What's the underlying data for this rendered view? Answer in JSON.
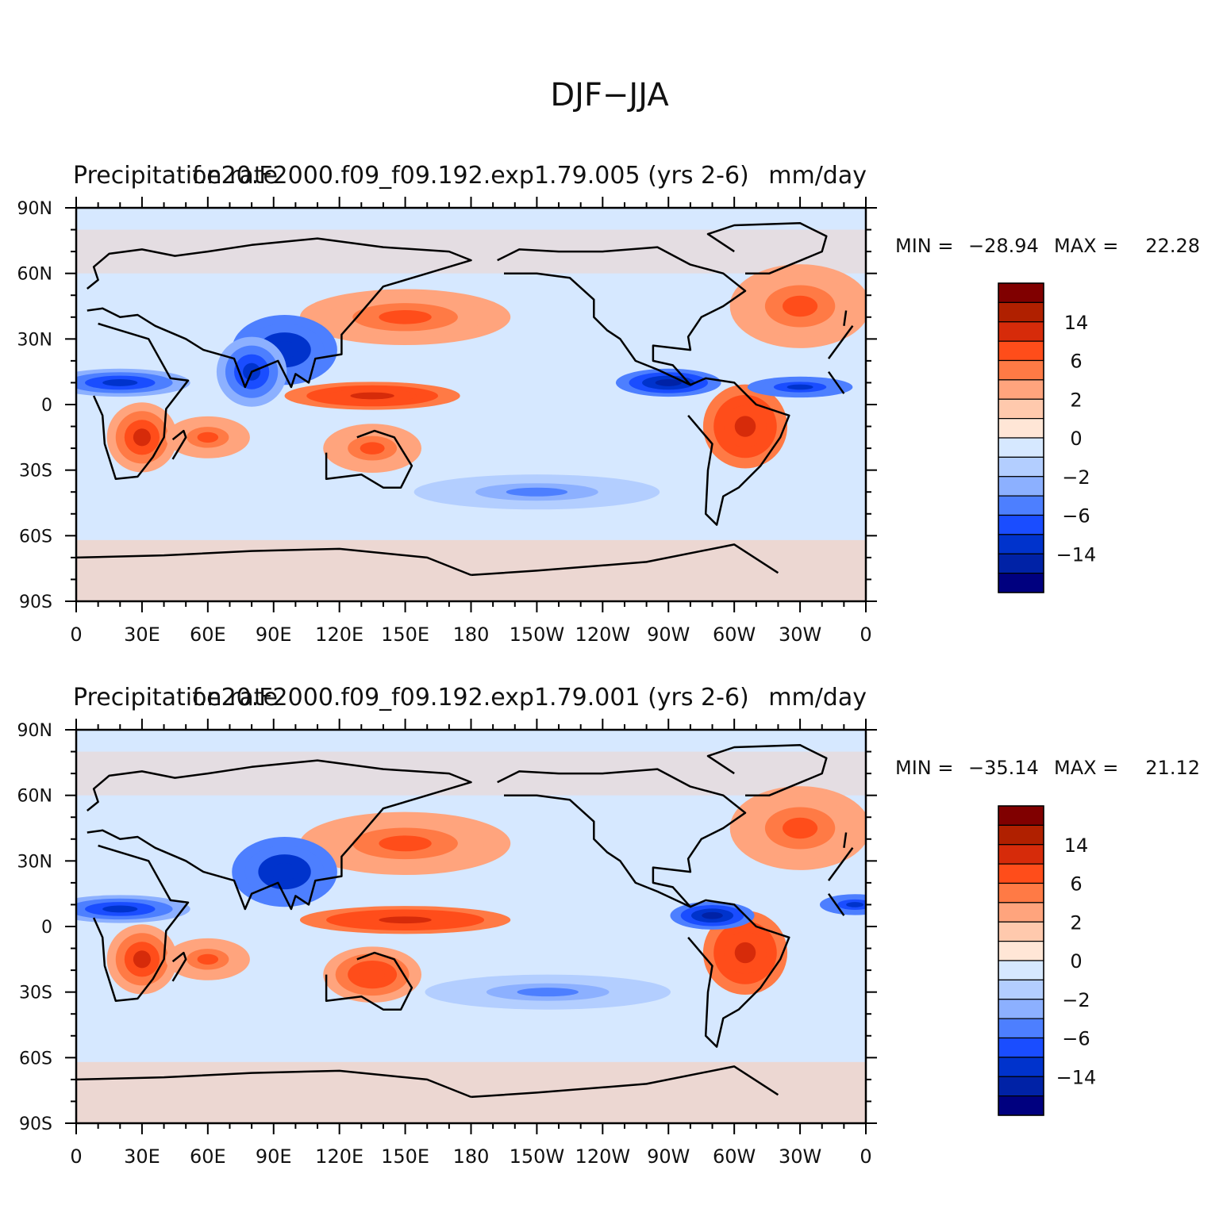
{
  "title": "DJF-JJA",
  "colors": {
    "levels": [
      "#00007f",
      "#0022a6",
      "#0033cc",
      "#1a4dff",
      "#4d7fff",
      "#8cb0ff",
      "#b3ceff",
      "#d6e8ff",
      "#ffe6d6",
      "#ffc9ad",
      "#ffa47d",
      "#ff7a45",
      "#ff4d1a",
      "#d62b0a",
      "#b02000",
      "#800000"
    ],
    "coast": "#000000"
  },
  "longitude_ticks": [
    "0",
    "30E",
    "60E",
    "90E",
    "120E",
    "150E",
    "180",
    "150W",
    "120W",
    "90W",
    "60W",
    "30W",
    "0"
  ],
  "latitude_ticks": [
    "90N",
    "60N",
    "30N",
    "0",
    "30S",
    "60S",
    "90S"
  ],
  "colorbar_labels": [
    "14",
    "6",
    "2",
    "0",
    "-2",
    "-6",
    "-14"
  ],
  "panels": [
    {
      "left_title": "Precipitation rate",
      "center_title": "f.e20.F2000.f09_f09.192.exp1.79.005 (yrs 2-6)",
      "right_title": "mm/day",
      "min_label": "MIN = ",
      "min_value": "-28.94",
      "max_label": "MAX = ",
      "max_value": "22.28"
    },
    {
      "left_title": "Precipitation rate",
      "center_title": "f.e20.F2000.f09_f09.192.exp1.79.001 (yrs 2-6)",
      "right_title": "mm/day",
      "min_label": "MIN = ",
      "min_value": "-35.14",
      "max_label": "MAX = ",
      "max_value": "21.12"
    }
  ],
  "chart_data": [
    {
      "type": "heatmap",
      "title": "DJF-JJA",
      "subtitle": "f.e20.F2000.f09_f09.192.exp1.79.005 (yrs 2-6)",
      "variable": "Precipitation rate",
      "units": "mm/day",
      "xlim": [
        0,
        360
      ],
      "ylim": [
        -90,
        90
      ],
      "min": -28.94,
      "max": 22.28,
      "contour_levels": [
        -14,
        -6,
        -2,
        0,
        2,
        6,
        14
      ],
      "features": [
        {
          "lon": 150,
          "lat": 40,
          "value": 6,
          "rx": 30,
          "ry": 8
        },
        {
          "lon": 135,
          "lat": 4,
          "value": 10,
          "rx": 25,
          "ry": 4
        },
        {
          "lon": 30,
          "lat": -15,
          "value": 8,
          "rx": 10,
          "ry": 10
        },
        {
          "lon": 60,
          "lat": -15,
          "value": 6,
          "rx": 12,
          "ry": 6
        },
        {
          "lon": 135,
          "lat": -20,
          "value": 6,
          "rx": 14,
          "ry": 7
        },
        {
          "lon": 305,
          "lat": -10,
          "value": 10,
          "rx": 12,
          "ry": 12
        },
        {
          "lon": 330,
          "lat": 45,
          "value": 6,
          "rx": 20,
          "ry": 12
        },
        {
          "lon": 20,
          "lat": 10,
          "value": -10,
          "rx": 20,
          "ry": 4
        },
        {
          "lon": 95,
          "lat": 25,
          "value": -14,
          "rx": 15,
          "ry": 10
        },
        {
          "lon": 80,
          "lat": 15,
          "value": -10,
          "rx": 10,
          "ry": 10
        },
        {
          "lon": 270,
          "lat": 10,
          "value": -16,
          "rx": 15,
          "ry": 4
        },
        {
          "lon": 330,
          "lat": 8,
          "value": -12,
          "rx": 15,
          "ry": 3
        },
        {
          "lon": 210,
          "lat": -40,
          "value": -5,
          "rx": 35,
          "ry": 5
        }
      ]
    },
    {
      "type": "heatmap",
      "title": "DJF-JJA",
      "subtitle": "f.e20.F2000.f09_f09.192.exp1.79.001 (yrs 2-6)",
      "variable": "Precipitation rate",
      "units": "mm/day",
      "xlim": [
        0,
        360
      ],
      "ylim": [
        -90,
        90
      ],
      "min": -35.14,
      "max": 21.12,
      "contour_levels": [
        -14,
        -6,
        -2,
        0,
        2,
        6,
        14
      ],
      "features": [
        {
          "lon": 150,
          "lat": 38,
          "value": 6,
          "rx": 30,
          "ry": 9
        },
        {
          "lon": 150,
          "lat": 3,
          "value": 10,
          "rx": 30,
          "ry": 4
        },
        {
          "lon": 30,
          "lat": -15,
          "value": 8,
          "rx": 10,
          "ry": 10
        },
        {
          "lon": 60,
          "lat": -15,
          "value": 6,
          "rx": 12,
          "ry": 6
        },
        {
          "lon": 135,
          "lat": -22,
          "value": 7,
          "rx": 14,
          "ry": 8
        },
        {
          "lon": 305,
          "lat": -12,
          "value": 10,
          "rx": 12,
          "ry": 12
        },
        {
          "lon": 330,
          "lat": 45,
          "value": 5,
          "rx": 20,
          "ry": 12
        },
        {
          "lon": 20,
          "lat": 8,
          "value": -10,
          "rx": 20,
          "ry": 4
        },
        {
          "lon": 95,
          "lat": 25,
          "value": -14,
          "rx": 15,
          "ry": 10
        },
        {
          "lon": 290,
          "lat": 5,
          "value": -16,
          "rx": 12,
          "ry": 4
        },
        {
          "lon": 355,
          "lat": 10,
          "value": -12,
          "rx": 10,
          "ry": 3
        },
        {
          "lon": 215,
          "lat": -30,
          "value": -5,
          "rx": 35,
          "ry": 5
        }
      ]
    }
  ]
}
